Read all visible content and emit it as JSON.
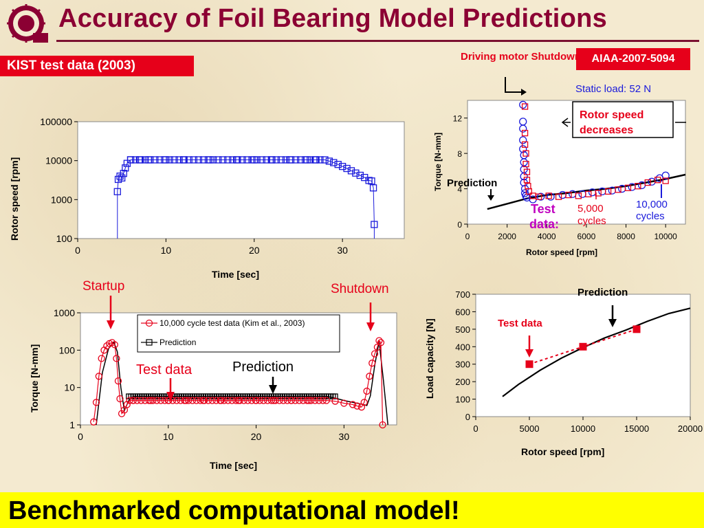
{
  "title": "Accuracy of Foil Bearing Model Predictions",
  "banner": "KIST test data (2003)",
  "reference": "AIAA-2007-5094",
  "footer": "Benchmarked computational model!",
  "colors": {
    "title": "#8b0033",
    "banner": "#e6001a",
    "footer_bg": "#ffff00",
    "test_red": "#e6001a",
    "test_blue": "#1a1adb",
    "prediction": "#000000"
  },
  "chart_data": [
    {
      "type": "scatter",
      "xlabel": "Time [sec]",
      "ylabel": "Rotor speed [rpm]",
      "yscale": "log",
      "xlim": [
        0,
        37
      ],
      "ylim": [
        100,
        100000
      ],
      "xticks": [
        "0",
        "10",
        "20",
        "30"
      ],
      "yticks": [
        "100",
        "1000",
        "10000",
        "100000"
      ],
      "grid": false,
      "series": [
        {
          "x": [
            4.5,
            4.6,
            4.8,
            5.0,
            5.2,
            5.4,
            5.6,
            6,
            7,
            8,
            10,
            12,
            15,
            18,
            20,
            22,
            24,
            26,
            27,
            28,
            28.5,
            29,
            29.5,
            30,
            30.5,
            31,
            31.5,
            32,
            32.5,
            33,
            33.3,
            33.5,
            33.6
          ],
          "y": [
            1600,
            3300,
            4000,
            3600,
            4700,
            6500,
            8500,
            10500,
            10500,
            10500,
            10500,
            10500,
            10500,
            10500,
            10500,
            10500,
            10500,
            10500,
            10500,
            10500,
            9700,
            8900,
            8000,
            7100,
            6300,
            5500,
            4800,
            4200,
            3700,
            3100,
            3000,
            2000,
            230
          ]
        }
      ]
    },
    {
      "type": "scatter",
      "xlabel": "Rotor speed [rpm]",
      "ylabel": "Torque [N-mm]",
      "xlim": [
        0,
        11000
      ],
      "ylim": [
        0,
        14
      ],
      "xticks": [
        "0",
        "2000",
        "4000",
        "6000",
        "8000",
        "10000"
      ],
      "yticks": [
        "0",
        "4",
        "8",
        "12"
      ],
      "grid": false,
      "annotations": [
        "Driving motor Shutdowns",
        "Static load: 52 N",
        "Rotor speed decreases",
        "Prediction",
        "Test data:",
        "5,000 cycles",
        "10,000 cycles"
      ],
      "series": [
        {
          "name": "10,000 cycles",
          "marker": "circle",
          "color": "#1a1adb",
          "x": [
            2800,
            2800,
            2800,
            2800,
            2800,
            2850,
            2850,
            2850,
            2850,
            2850,
            2900,
            2900,
            2950,
            3000,
            3300,
            3700,
            4200,
            4800,
            5300,
            5800,
            6300,
            6800,
            7300,
            7800,
            8300,
            8800,
            9300,
            9700,
            10000
          ],
          "y": [
            13.5,
            11.6,
            10.8,
            9.5,
            8.5,
            7.8,
            7,
            6.2,
            5.4,
            4.7,
            4,
            3.5,
            3.2,
            3,
            2.8,
            3.1,
            3.1,
            3.3,
            3.4,
            3.4,
            3.6,
            3.7,
            3.8,
            4.0,
            4.2,
            4.4,
            4.8,
            5.2,
            5.5
          ]
        },
        {
          "name": "5,000 cycles",
          "marker": "square",
          "color": "#e6001a",
          "x": [
            2900,
            2900,
            2900,
            2950,
            2950,
            3000,
            3000,
            3050,
            3100,
            3300,
            3600,
            4100,
            4600,
            5100,
            5600,
            6100,
            6600,
            7100,
            7600,
            8100,
            8600,
            9100,
            9600,
            10000
          ],
          "y": [
            13.3,
            10.3,
            9.0,
            8.0,
            6.8,
            5.9,
            5.0,
            4.3,
            3.7,
            3.2,
            3.1,
            3.2,
            3.1,
            3.3,
            3.2,
            3.4,
            3.5,
            3.7,
            3.9,
            4.1,
            4.3,
            4.7,
            5.0,
            4.9
          ]
        },
        {
          "name": "Prediction",
          "type": "line",
          "x": [
            1000,
            2000,
            3000,
            4000,
            5000,
            6000,
            7000,
            8000,
            9000,
            10000,
            11000
          ],
          "y": [
            1.7,
            2.3,
            2.9,
            3.3,
            3.5,
            3.8,
            4.0,
            4.3,
            4.7,
            5.1,
            5.6
          ]
        }
      ]
    },
    {
      "type": "line",
      "xlabel": "Time [sec]",
      "ylabel": "Torque [N-mm]",
      "yscale": "log",
      "xlim": [
        0,
        36
      ],
      "ylim": [
        1,
        1000
      ],
      "xticks": [
        "0",
        "10",
        "20",
        "30"
      ],
      "yticks": [
        "1",
        "10",
        "100",
        "1000"
      ],
      "grid": false,
      "legend": "top-right",
      "annotations": [
        "Startup",
        "Shutdown",
        "Test data",
        "Prediction"
      ],
      "series": [
        {
          "name": "10,000 cycle test data (Kim et al., 2003)",
          "marker": "circle",
          "color": "#e6001a",
          "x": [
            1.5,
            1.8,
            2.1,
            2.4,
            2.7,
            3.0,
            3.3,
            3.6,
            3.9,
            4.1,
            4.3,
            4.5,
            4.7,
            5.0,
            5.3,
            5.6,
            6,
            8,
            10,
            12,
            14,
            16,
            18,
            20,
            22,
            24,
            26,
            28,
            29,
            30,
            31,
            31.5,
            32,
            32.3,
            32.6,
            32.9,
            33.2,
            33.5,
            33.8,
            34.0,
            34.2,
            34.4
          ],
          "y": [
            1.2,
            4,
            20,
            60,
            100,
            130,
            150,
            160,
            140,
            60,
            15,
            5,
            2,
            2.5,
            3.5,
            4.5,
            4.5,
            4.5,
            4.5,
            4.5,
            4.5,
            4.5,
            4.5,
            4.5,
            4.5,
            4.5,
            4.5,
            4.5,
            4.3,
            3.8,
            3.5,
            3.2,
            3.0,
            4,
            8,
            20,
            45,
            80,
            120,
            180,
            160,
            1
          ]
        },
        {
          "name": "Prediction",
          "marker": "square",
          "color": "#000000",
          "x": [
            1.8,
            2.5,
            3.2,
            3.8,
            4.2,
            4.6,
            5.0,
            5.5,
            6,
            8,
            10,
            12,
            15,
            18,
            20,
            22,
            25,
            28,
            29,
            30,
            31,
            32,
            32.6,
            33.0,
            33.5,
            34.0,
            34.5,
            35.0
          ],
          "y": [
            1,
            25,
            110,
            165,
            90,
            10,
            2.4,
            4.5,
            5.8,
            5.8,
            5.8,
            5.8,
            5.8,
            5.8,
            5.8,
            5.8,
            5.8,
            5.8,
            5.2,
            4.5,
            4.0,
            3.6,
            3.3,
            6,
            40,
            170,
            15,
            1
          ]
        }
      ]
    },
    {
      "type": "line",
      "xlabel": "Rotor speed [rpm]",
      "ylabel": "Load capacity [N]",
      "xlim": [
        0,
        20000
      ],
      "ylim": [
        0,
        700
      ],
      "xticks": [
        "0",
        "5000",
        "10000",
        "15000",
        "20000"
      ],
      "yticks": [
        "0",
        "100",
        "200",
        "300",
        "400",
        "500",
        "600",
        "700"
      ],
      "grid": false,
      "annotations": [
        "Prediction",
        "Test data"
      ],
      "series": [
        {
          "name": "Test data",
          "marker": "square",
          "color": "#e6001a",
          "x": [
            5000,
            10000,
            15000
          ],
          "y": [
            300,
            400,
            500
          ]
        },
        {
          "name": "Prediction",
          "color": "#000000",
          "x": [
            2500,
            4000,
            6000,
            8000,
            10000,
            12000,
            14000,
            16000,
            18000,
            20000
          ],
          "y": [
            115,
            185,
            265,
            335,
            395,
            450,
            495,
            545,
            590,
            620
          ]
        }
      ]
    }
  ]
}
